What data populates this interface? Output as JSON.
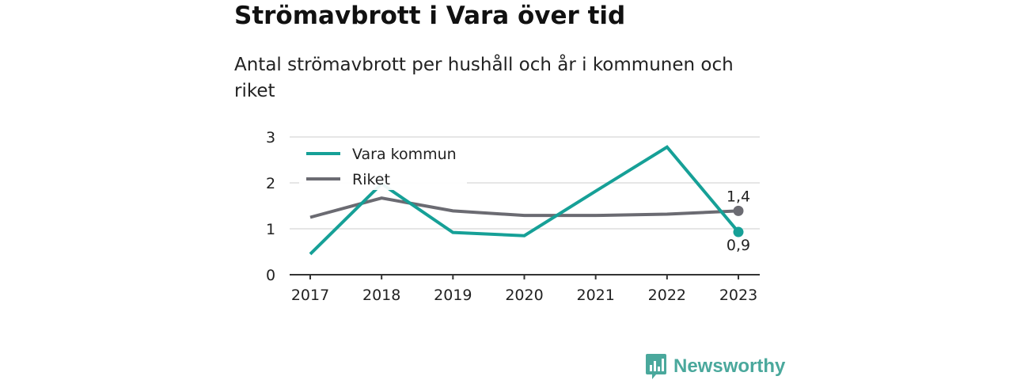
{
  "title": "Strömavbrott i Vara över tid",
  "subtitle": "Antal strömavbrott per hushåll och år i kommunen och riket",
  "brand": {
    "name": "Newsworthy",
    "color": "#4aa89c",
    "icon": "bar-chart-logo-icon"
  },
  "chart_data": {
    "type": "line",
    "x": [
      "2017",
      "2018",
      "2019",
      "2020",
      "2021",
      "2022",
      "2023"
    ],
    "ylim": [
      0,
      3
    ],
    "yticks": [
      "0",
      "1",
      "2",
      "3"
    ],
    "grid": true,
    "legend_placement": "top-left",
    "series": [
      {
        "name": "Vara kommun",
        "color": "#16a097",
        "values": [
          0.45,
          1.98,
          0.92,
          0.85,
          1.82,
          2.78,
          0.93
        ],
        "end_label": "0,9"
      },
      {
        "name": "Riket",
        "color": "#6b6b72",
        "values": [
          1.25,
          1.67,
          1.39,
          1.29,
          1.29,
          1.32,
          1.39
        ],
        "end_label": "1,4"
      }
    ]
  }
}
